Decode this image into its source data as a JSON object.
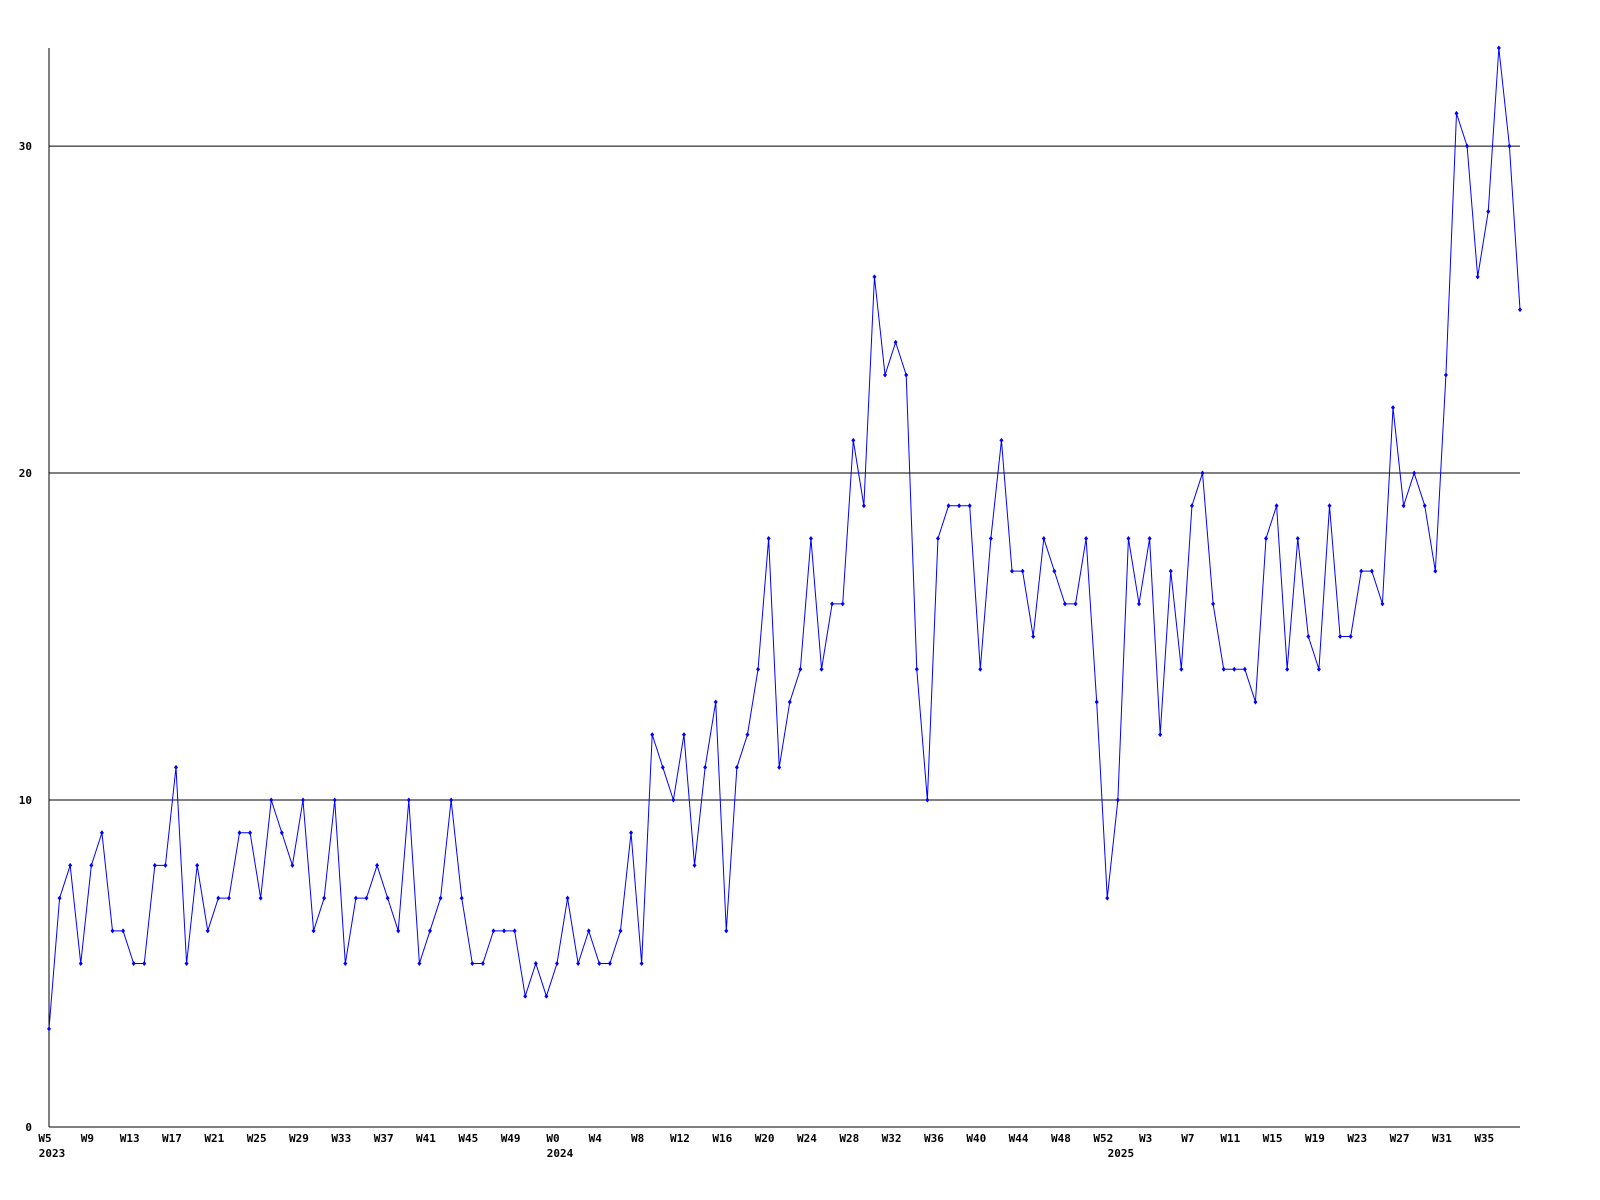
{
  "chart_data": {
    "type": "line",
    "categories": [
      "W5",
      null,
      null,
      null,
      "W9",
      null,
      null,
      null,
      "W13",
      null,
      null,
      null,
      "W17",
      null,
      null,
      null,
      "W21",
      null,
      null,
      null,
      "W25",
      null,
      null,
      null,
      "W29",
      null,
      null,
      null,
      "W33",
      null,
      null,
      null,
      "W37",
      null,
      null,
      null,
      "W41",
      null,
      null,
      null,
      "W45",
      null,
      null,
      null,
      "W49",
      null,
      null,
      null,
      "W0",
      null,
      null,
      null,
      "W4",
      null,
      null,
      null,
      "W8",
      null,
      null,
      null,
      "W12",
      null,
      null,
      null,
      "W16",
      null,
      null,
      null,
      "W20",
      null,
      null,
      null,
      "W24",
      null,
      null,
      null,
      "W28",
      null,
      null,
      null,
      "W32",
      null,
      null,
      null,
      "W36",
      null,
      null,
      null,
      "W40",
      null,
      null,
      null,
      "W44",
      null,
      null,
      null,
      "W48",
      null,
      null,
      null,
      "W52",
      null,
      null,
      null,
      "W3",
      null,
      null,
      null,
      "W7",
      null,
      null,
      null,
      "W11",
      null,
      null,
      null,
      "W15",
      null,
      null,
      null,
      "W19",
      null,
      null,
      null,
      "W23",
      null,
      null,
      null,
      "W27",
      null,
      null,
      null,
      "W31",
      null,
      null,
      null,
      "W35",
      null,
      null,
      null
    ],
    "years": [
      "2023",
      null,
      null,
      null,
      null,
      null,
      null,
      null,
      null,
      null,
      null,
      null,
      null,
      null,
      null,
      null,
      null,
      null,
      null,
      null,
      null,
      null,
      null,
      null,
      null,
      null,
      null,
      null,
      null,
      null,
      null,
      null,
      null,
      null,
      null,
      null,
      null,
      null,
      null,
      null,
      null,
      null,
      null,
      null,
      null,
      null,
      null,
      null,
      "2024",
      null,
      null,
      null,
      null,
      null,
      null,
      null,
      null,
      null,
      null,
      null,
      null,
      null,
      null,
      null,
      null,
      null,
      null,
      null,
      null,
      null,
      null,
      null,
      null,
      null,
      null,
      null,
      null,
      null,
      null,
      null,
      null,
      null,
      null,
      null,
      null,
      null,
      null,
      null,
      null,
      null,
      null,
      null,
      null,
      null,
      null,
      null,
      null,
      null,
      null,
      null,
      null,
      "2025",
      null,
      null,
      null,
      null,
      null,
      null,
      null,
      null,
      null,
      null,
      null,
      null,
      null,
      null,
      null,
      null,
      null,
      null,
      null,
      null,
      null,
      null,
      null,
      null,
      null,
      null,
      null,
      null,
      null,
      null,
      null,
      null,
      null,
      null,
      null,
      null,
      null,
      null
    ],
    "values": [
      3,
      7,
      8,
      5,
      8,
      9,
      6,
      6,
      5,
      5,
      8,
      8,
      11,
      5,
      8,
      6,
      7,
      7,
      9,
      9,
      7,
      10,
      9,
      8,
      10,
      6,
      7,
      10,
      5,
      7,
      7,
      8,
      7,
      6,
      10,
      5,
      6,
      7,
      10,
      7,
      5,
      5,
      6,
      6,
      6,
      4,
      5,
      4,
      5,
      7,
      5,
      6,
      5,
      5,
      6,
      9,
      5,
      12,
      11,
      10,
      12,
      8,
      11,
      13,
      6,
      11,
      12,
      14,
      18,
      11,
      13,
      14,
      18,
      14,
      16,
      16,
      21,
      19,
      26,
      23,
      24,
      23,
      14,
      10,
      18,
      19,
      19,
      19,
      14,
      18,
      21,
      17,
      17,
      15,
      18,
      17,
      16,
      16,
      18,
      13,
      7,
      10,
      18,
      16,
      18,
      12,
      17,
      14,
      19,
      20,
      16,
      14,
      14,
      14,
      13,
      18,
      19,
      14,
      18,
      15,
      14,
      19,
      15,
      15,
      17,
      17,
      16,
      22,
      19,
      20,
      19,
      17,
      23,
      31,
      30,
      26,
      28,
      33,
      30,
      25
    ],
    "color": "#0000ff",
    "ylim": [
      0,
      33
    ],
    "yticks": [
      0,
      10,
      20,
      30
    ],
    "grid": true
  }
}
